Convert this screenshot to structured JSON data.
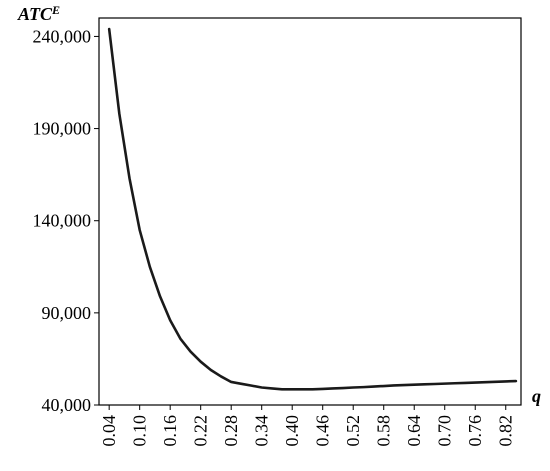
{
  "chart_data": {
    "type": "line",
    "title": "",
    "ylabel": "ATC",
    "ylabel_superscript": "E",
    "xlabel": "q",
    "ylim": [
      40000,
      250000
    ],
    "xlim": [
      0.02,
      0.85
    ],
    "grid": false,
    "y_ticks": [
      40000,
      90000,
      140000,
      190000,
      240000
    ],
    "y_tick_labels": [
      "40,000",
      "90,000",
      "140,000",
      "190,000",
      "240,000"
    ],
    "x_tick_labels": [
      "0.04",
      "0.10",
      "0.16",
      "0.22",
      "0.28",
      "0.34",
      "0.40",
      "0.46",
      "0.52",
      "0.58",
      "0.64",
      "0.70",
      "0.76",
      "0.82"
    ],
    "x_ticks": [
      0.04,
      0.1,
      0.16,
      0.22,
      0.28,
      0.34,
      0.4,
      0.46,
      0.52,
      0.58,
      0.64,
      0.7,
      0.76,
      0.82
    ],
    "series": [
      {
        "color": "#1a1a1a",
        "x": [
          0.04,
          0.06,
          0.08,
          0.1,
          0.12,
          0.14,
          0.16,
          0.18,
          0.2,
          0.22,
          0.24,
          0.26,
          0.28,
          0.3,
          0.32,
          0.34,
          0.36,
          0.38,
          0.4,
          0.42,
          0.44,
          0.46,
          0.48,
          0.5,
          0.52,
          0.54,
          0.56,
          0.58,
          0.6,
          0.62,
          0.64,
          0.66,
          0.68,
          0.7,
          0.72,
          0.74,
          0.76,
          0.78,
          0.8,
          0.82,
          0.84
        ],
        "y": [
          244000,
          198000,
          163000,
          135000,
          115000,
          99000,
          86000,
          76000,
          69000,
          63500,
          59000,
          55500,
          52500,
          51500,
          50500,
          49500,
          49000,
          48500,
          48500,
          48500,
          48500,
          48700,
          49000,
          49200,
          49500,
          49700,
          50000,
          50300,
          50600,
          50800,
          51000,
          51200,
          51400,
          51600,
          51800,
          52000,
          52200,
          52400,
          52600,
          52800,
          53000
        ]
      }
    ]
  }
}
